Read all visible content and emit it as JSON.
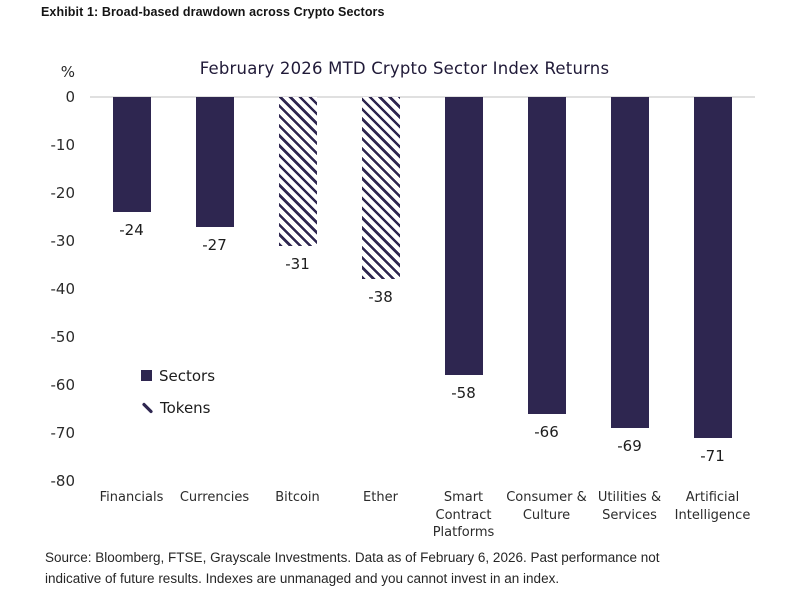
{
  "header": {
    "exhibit_title": "Exhibit 1: Broad-based drawdown across Crypto Sectors"
  },
  "chart_data": {
    "type": "bar",
    "title": "February 2026 MTD Crypto Sector Index Returns",
    "unit_label": "%",
    "xlabel": "",
    "ylabel": "%",
    "ylim": [
      -80,
      0
    ],
    "yticks": [
      0,
      -10,
      -20,
      -30,
      -40,
      -50,
      -60,
      -70,
      -80
    ],
    "grid": false,
    "categories": [
      "Financials",
      "Currencies",
      "Bitcoin",
      "Ether",
      "Smart\nContract\nPlatforms",
      "Consumer &\nCulture",
      "Utilities &\nServices",
      "Artificial\nIntelligence"
    ],
    "values": [
      -24,
      -27,
      -31,
      -38,
      -58,
      -66,
      -69,
      -71
    ],
    "bar_series": [
      "Sectors",
      "Sectors",
      "Tokens",
      "Tokens",
      "Sectors",
      "Sectors",
      "Sectors",
      "Sectors"
    ],
    "legend": {
      "position": "inside-left",
      "entries": [
        {
          "label": "Sectors",
          "marker": "solid-square"
        },
        {
          "label": "Tokens",
          "marker": "diagonal-stroke"
        }
      ]
    },
    "colors": {
      "bar_fill": "#2E2650",
      "hatch_stroke": "#2E2650",
      "hatch_background": "#FFFFFF",
      "baseline": "#E0E0E0"
    }
  },
  "footer": {
    "source_lines": [
      "Source: Bloomberg, FTSE, Grayscale Investments. Data as of February 6, 2026. Past performance not",
      "indicative of future results. Indexes are unmanaged and you cannot invest in an index."
    ]
  }
}
